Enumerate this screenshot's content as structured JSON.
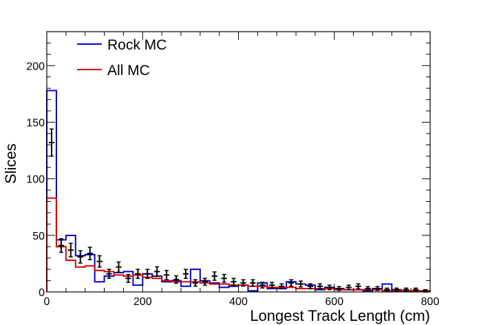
{
  "chart_data": {
    "type": "histogram",
    "xlabel": "Longest Track Length (cm)",
    "ylabel": "Slices",
    "xlim": [
      0,
      800
    ],
    "ylim": [
      0,
      230
    ],
    "bin_width": 20,
    "xticks": [
      0,
      200,
      400,
      600,
      800
    ],
    "yticks": [
      0,
      50,
      100,
      150,
      200
    ],
    "legend_placement": "top-left",
    "series": [
      {
        "name": "Rock MC",
        "style": "step",
        "color": "#0000cc",
        "values": [
          178,
          46,
          50,
          32,
          33,
          9,
          14,
          17,
          18,
          6,
          16,
          14,
          9,
          10,
          5,
          20,
          10,
          8,
          4,
          5,
          6,
          1,
          8,
          3,
          3,
          9,
          7,
          6,
          2,
          4,
          3,
          2,
          2,
          1,
          3,
          7,
          2,
          1,
          1,
          1
        ]
      },
      {
        "name": "All MC",
        "style": "step",
        "color": "#dd0000",
        "values": [
          83,
          40,
          28,
          22,
          23,
          19,
          18,
          15,
          14,
          15,
          13,
          12,
          10,
          9,
          9,
          9,
          8,
          7,
          7,
          6,
          6,
          5,
          5,
          4,
          4,
          4,
          3,
          3,
          3,
          3,
          2,
          2,
          2,
          2,
          2,
          1,
          1,
          1,
          1,
          1
        ]
      },
      {
        "name": "",
        "style": "points",
        "color": "#000000",
        "values": [
          132,
          41,
          37,
          31,
          34,
          27,
          16,
          22,
          12,
          16,
          16,
          18,
          15,
          11,
          16,
          8,
          9,
          14,
          12,
          9,
          8,
          8,
          6,
          6,
          5,
          8,
          7,
          5,
          5,
          4,
          3,
          4,
          5,
          3,
          3,
          2,
          2,
          2,
          2,
          1
        ],
        "errors": [
          12,
          6,
          6,
          5.5,
          5.5,
          5,
          4,
          4.5,
          3.5,
          4,
          4,
          4.2,
          4,
          3.3,
          4,
          2.8,
          3,
          3.7,
          3.5,
          3,
          2.8,
          2.8,
          2.5,
          2.5,
          2.2,
          2.8,
          2.6,
          2.2,
          2.2,
          2,
          1.7,
          2,
          2.2,
          1.7,
          1.7,
          1.4,
          1.4,
          1.4,
          1.4,
          1
        ]
      }
    ]
  }
}
